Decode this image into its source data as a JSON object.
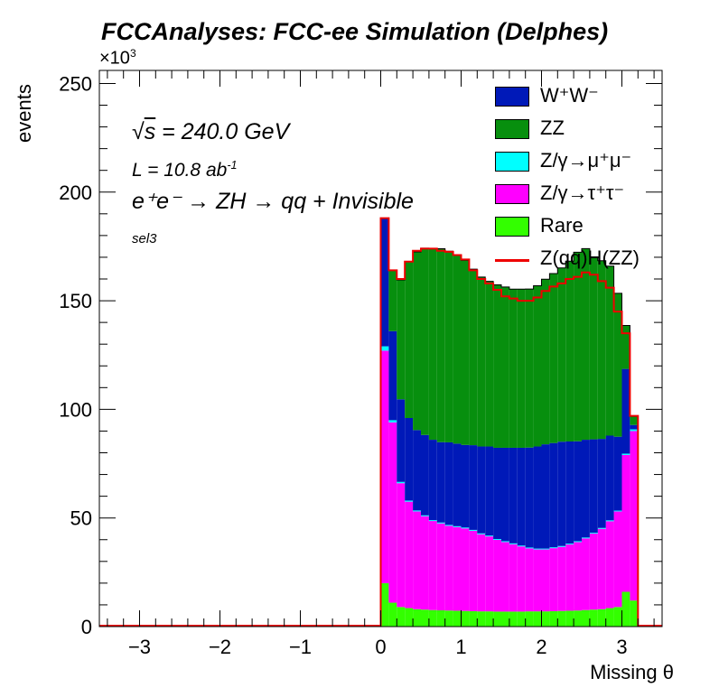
{
  "title": "FCCAnalyses: FCC-ee Simulation (Delphes)",
  "axis_multiplier": "×10",
  "axis_multiplier_exp": "3",
  "annotations": {
    "sqrt_s": "s",
    "energy": " = 240.0 GeV",
    "lumi_prefix": "L = 10.8 ab",
    "lumi_exp": "-1",
    "process": "e⁺e⁻ → ZH → qq + Invisible",
    "selection": "sel3"
  },
  "colors": {
    "WW": "#0019b8",
    "ZZ": "#078f0e",
    "Zmumu": "#00ffff",
    "Ztautau": "#ff00ff",
    "Rare": "#33ff00",
    "signal": "#ee0000"
  },
  "chart_data": {
    "type": "bar",
    "stacked": true,
    "xlabel": "Missing θ",
    "ylabel": "events",
    "xlim": [
      -3.5,
      3.5
    ],
    "ylim": [
      0,
      256000
    ],
    "xticks": [
      "−3",
      "−2",
      "−1",
      "0",
      "1",
      "2",
      "3"
    ],
    "yticks": [
      "0",
      "50",
      "100",
      "150",
      "200",
      "250"
    ],
    "bin_edges_start": 0.0,
    "bin_width": 0.1,
    "legend_position": "top-right",
    "series": [
      {
        "key": "Rare",
        "name": "Rare",
        "values": [
          20000,
          11000,
          9000,
          8500,
          8000,
          7800,
          7600,
          7500,
          7400,
          7300,
          7200,
          7100,
          7000,
          7000,
          6900,
          6900,
          6900,
          6900,
          7000,
          7000,
          7000,
          7100,
          7200,
          7300,
          7400,
          7600,
          7800,
          8000,
          8500,
          9000,
          16000,
          12000
        ]
      },
      {
        "key": "Ztautau",
        "name": "Z/γ→τ⁺τ⁻",
        "values": [
          107000,
          83000,
          57000,
          49000,
          45000,
          43000,
          41000,
          40000,
          39000,
          38500,
          38000,
          37000,
          35500,
          34500,
          33000,
          32000,
          31000,
          30000,
          29000,
          28500,
          28500,
          29000,
          29500,
          30500,
          31500,
          33000,
          35000,
          37000,
          40000,
          44000,
          63000,
          78000
        ]
      },
      {
        "key": "Zmumu",
        "name": "Z/γ→μ⁺μ⁻",
        "values": [
          2000,
          1000,
          600,
          500,
          450,
          400,
          400,
          400,
          400,
          400,
          400,
          400,
          400,
          400,
          400,
          400,
          400,
          400,
          400,
          400,
          400,
          400,
          400,
          400,
          400,
          400,
          400,
          400,
          400,
          400,
          600,
          800
        ]
      },
      {
        "key": "WW",
        "name": "W⁺W⁻",
        "values": [
          59000,
          41000,
          38000,
          38000,
          37000,
          37000,
          37000,
          37000,
          38000,
          38000,
          38000,
          39000,
          40000,
          41000,
          42000,
          43000,
          44000,
          45000,
          46000,
          47000,
          48000,
          48000,
          48000,
          47000,
          46000,
          45000,
          43000,
          41000,
          39000,
          34000,
          39000,
          2000
        ]
      },
      {
        "key": "ZZ",
        "name": "ZZ",
        "values": [
          0,
          28000,
          55000,
          72000,
          82000,
          86000,
          88000,
          89000,
          88000,
          87000,
          85000,
          81000,
          78000,
          76000,
          75000,
          74000,
          73000,
          73000,
          73000,
          74000,
          76000,
          78000,
          80000,
          83000,
          87000,
          88000,
          84000,
          82000,
          78000,
          66000,
          20000,
          4000
        ]
      }
    ],
    "signal": {
      "key": "signal",
      "name": "Z(qq)H(ZZ)",
      "values": [
        188000,
        164000,
        160000,
        168000,
        173000,
        174000,
        174000,
        173000,
        172500,
        171000,
        169000,
        164000,
        160000,
        158000,
        155000,
        152000,
        151000,
        150000,
        150000,
        151500,
        154500,
        156500,
        158000,
        160000,
        161000,
        163000,
        162000,
        159000,
        156000,
        145000,
        135000,
        97000
      ]
    }
  }
}
